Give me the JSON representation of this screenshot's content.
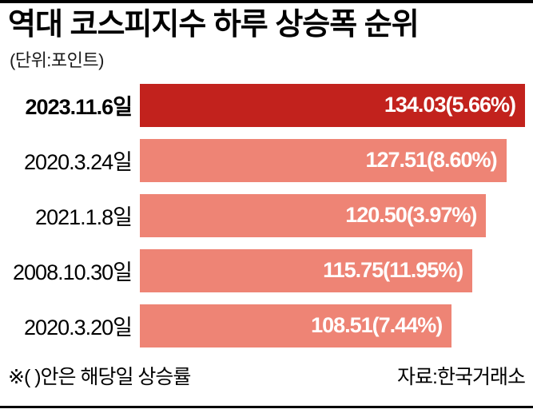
{
  "chart_data": {
    "type": "bar",
    "orientation": "horizontal",
    "title": "역대 코스피지수 하루 상승폭 순위",
    "unit_label": "(단위:포인트)",
    "categories": [
      "2023.11.6일",
      "2020.3.24일",
      "2021.1.8일",
      "2008.10.30일",
      "2020.3.20일"
    ],
    "values": [
      134.03,
      127.51,
      120.5,
      115.75,
      108.51
    ],
    "pct_changes": [
      5.66,
      8.6,
      3.97,
      11.95,
      7.44
    ],
    "value_labels": [
      "134.03(5.66%)",
      "127.51(8.60%)",
      "120.50(3.97%)",
      "115.75(11.95%)",
      "108.51(7.44%)"
    ],
    "highlight_index": 0,
    "colors": {
      "highlight": "#c2221d",
      "normal": "#ee8475"
    },
    "xlim": [
      0,
      134.03
    ],
    "grid": false,
    "legend": false
  },
  "footer": {
    "note": "※(  )안은 해당일 상승률",
    "source": "자료:한국거래소"
  }
}
